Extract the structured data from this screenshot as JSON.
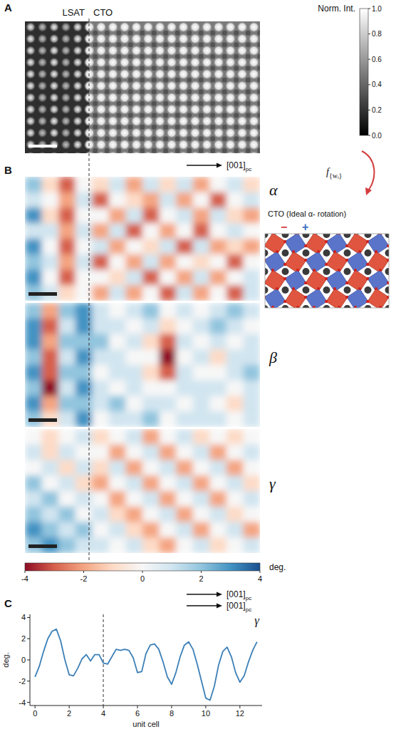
{
  "chart_data": [
    {
      "type": "image",
      "panel": "A",
      "region_labels": [
        "LSAT",
        "CTO"
      ],
      "colorbar": {
        "label": "Norm. Int.",
        "range": [
          0,
          1
        ],
        "ticks": [
          {
            "value": 0,
            "label": "0.0"
          },
          {
            "value": 0.2,
            "label": "0.2"
          },
          {
            "value": 0.4,
            "label": "0.4"
          },
          {
            "value": 0.6,
            "label": "0.6"
          },
          {
            "value": 0.8,
            "label": "0.8"
          },
          {
            "value": 1,
            "label": "1.0"
          }
        ]
      },
      "direction_label": "[001]",
      "direction_subscript": "pc",
      "transform_label": "f",
      "transform_subscript": "{wᵢ}"
    },
    {
      "type": "heatmap",
      "panel": "B",
      "title": "α",
      "inset": {
        "title": "CTO (Ideal α- rotation)",
        "minus": "−",
        "plus": "+"
      },
      "cells": [
        [
          2,
          -1,
          -3,
          0,
          -1,
          1,
          -2,
          1,
          -1,
          1,
          -2,
          0,
          1,
          -1
        ],
        [
          1,
          0,
          -2,
          1,
          -3,
          0,
          -1,
          -2,
          1,
          -2,
          0,
          -3,
          0,
          1
        ],
        [
          3,
          -1,
          -3,
          0,
          0,
          -2,
          1,
          -3,
          0,
          1,
          -2,
          1,
          -1,
          -2
        ],
        [
          1,
          1,
          -2,
          1,
          -2,
          1,
          -3,
          0,
          -2,
          0,
          -3,
          0,
          1,
          0
        ],
        [
          3,
          0,
          -3,
          0,
          1,
          -2,
          0,
          -1,
          1,
          -3,
          1,
          -2,
          -1,
          -2
        ],
        [
          2,
          1,
          -2,
          1,
          -3,
          0,
          -2,
          1,
          -2,
          0,
          -1,
          0,
          -3,
          0
        ],
        [
          3,
          0,
          -3,
          0,
          0,
          -1,
          1,
          -3,
          0,
          -2,
          1,
          -2,
          0,
          1
        ],
        [
          2,
          1,
          -1,
          0,
          -2,
          1,
          -2,
          0,
          -3,
          1,
          -2,
          0,
          -3,
          1
        ]
      ]
    },
    {
      "type": "heatmap",
      "title": "β",
      "cells": [
        [
          2,
          -2,
          2,
          3,
          1,
          0,
          1,
          2,
          0,
          1,
          0,
          1,
          2,
          1
        ],
        [
          3,
          -3,
          1,
          3,
          1,
          1,
          0,
          1,
          -1,
          0,
          1,
          2,
          1,
          0
        ],
        [
          3,
          -2,
          2,
          2,
          2,
          0,
          1,
          -1,
          -3,
          1,
          0,
          1,
          0,
          1
        ],
        [
          2,
          -3,
          1,
          3,
          1,
          1,
          0,
          0,
          -4,
          0,
          1,
          -1,
          1,
          1
        ],
        [
          3,
          -3,
          2,
          2,
          0,
          1,
          1,
          -1,
          -3,
          1,
          0,
          0,
          1,
          2
        ],
        [
          2,
          -4,
          1,
          3,
          1,
          0,
          1,
          0,
          0,
          1,
          1,
          1,
          0,
          1
        ],
        [
          3,
          -2,
          2,
          2,
          1,
          2,
          0,
          1,
          1,
          0,
          1,
          0,
          -1,
          1
        ],
        [
          2,
          -1,
          1,
          3,
          0,
          1,
          1,
          2,
          0,
          1,
          1,
          1,
          0,
          1
        ]
      ]
    },
    {
      "type": "heatmap",
      "title": "γ",
      "cells": [
        [
          0,
          -1,
          0,
          1,
          -1,
          0,
          1,
          -2,
          0,
          1,
          -1,
          0,
          -1,
          0
        ],
        [
          1,
          -1,
          1,
          0,
          0,
          -2,
          0,
          1,
          -2,
          0,
          1,
          -2,
          0,
          1
        ],
        [
          0,
          1,
          -1,
          1,
          -1,
          1,
          -2,
          0,
          1,
          -2,
          0,
          1,
          -2,
          0
        ],
        [
          2,
          0,
          1,
          -1,
          -2,
          0,
          1,
          -2,
          0,
          1,
          -2,
          0,
          1,
          -1
        ],
        [
          1,
          2,
          0,
          1,
          0,
          -2,
          0,
          1,
          -2,
          0,
          1,
          -2,
          0,
          1
        ],
        [
          2,
          1,
          2,
          0,
          1,
          -1,
          -2,
          0,
          1,
          -2,
          0,
          1,
          -1,
          0
        ],
        [
          3,
          2,
          1,
          2,
          0,
          1,
          -1,
          -2,
          0,
          1,
          -2,
          0,
          1,
          -2
        ],
        [
          2,
          3,
          2,
          1,
          1,
          0,
          1,
          -1,
          -2,
          0,
          1,
          -1,
          0,
          1
        ]
      ],
      "colorbar": {
        "label": "deg.",
        "range": [
          -4,
          4
        ],
        "ticks": [
          -4,
          -2,
          0,
          2,
          4
        ]
      },
      "direction_label": "[001]",
      "direction_subscript": "pc"
    },
    {
      "type": "line",
      "panel": "C",
      "title": "γ",
      "x_label": "unit cell",
      "y_label": "deg.",
      "color": "#3b7fb7",
      "interface_x": 4,
      "x": [
        0,
        0.25,
        0.5,
        0.75,
        1,
        1.25,
        1.5,
        1.75,
        2,
        2.25,
        2.5,
        2.75,
        3,
        3.25,
        3.5,
        3.75,
        4,
        4.25,
        4.5,
        4.75,
        5,
        5.25,
        5.5,
        5.75,
        6,
        6.25,
        6.5,
        6.75,
        7,
        7.25,
        7.5,
        7.75,
        8,
        8.25,
        8.5,
        8.75,
        9,
        9.25,
        9.5,
        9.75,
        10,
        10.25,
        10.5,
        10.75,
        11,
        11.25,
        11.5,
        11.75,
        12,
        12.25,
        12.5,
        12.75,
        13
      ],
      "values": [
        -1.6,
        -0.6,
        0.8,
        2.0,
        2.7,
        2.9,
        1.8,
        0.0,
        -1.4,
        -1.5,
        -0.8,
        0.1,
        0.5,
        -0.1,
        0.5,
        0.5,
        -0.3,
        -0.4,
        0.3,
        1.0,
        0.9,
        1.0,
        0.9,
        0.2,
        -1.2,
        -1.1,
        0.6,
        1.4,
        1.5,
        1.0,
        -0.2,
        -1.6,
        -2.3,
        -1.2,
        0.3,
        1.4,
        1.7,
        1.0,
        -0.4,
        -2.0,
        -3.6,
        -3.8,
        -2.5,
        -0.5,
        0.8,
        1.2,
        0.3,
        -1.2,
        -2.1,
        -1.5,
        -0.2,
        0.9,
        1.7
      ],
      "xlim": [
        -0.3,
        13.3
      ],
      "ylim": [
        -4.3,
        4.3
      ],
      "xticks": [
        0,
        2,
        4,
        6,
        8,
        10,
        12
      ],
      "yticks": [
        -4,
        -2,
        0,
        2,
        4
      ],
      "direction_label": "[001]",
      "direction_subscript": "pc"
    }
  ]
}
